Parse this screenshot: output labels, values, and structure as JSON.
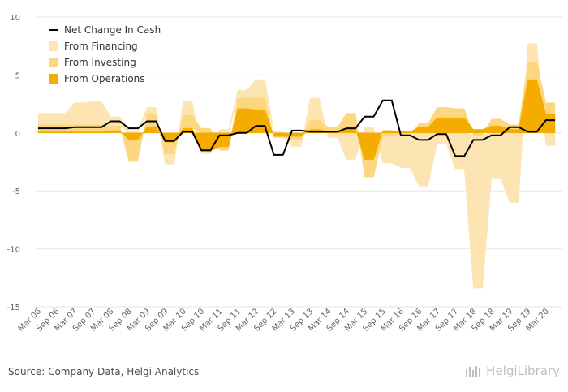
{
  "chart_data": {
    "type": "area",
    "x": [
      "Mar 06",
      "Jun 06",
      "Sep 06",
      "Dec 06",
      "Mar 07",
      "Jun 07",
      "Sep 07",
      "Dec 07",
      "Mar 08",
      "Jun 08",
      "Sep 08",
      "Dec 08",
      "Mar 09",
      "Jun 09",
      "Sep 09",
      "Dec 09",
      "Mar 10",
      "Jun 10",
      "Sep 10",
      "Dec 10",
      "Mar 11",
      "Jun 11",
      "Sep 11",
      "Dec 11",
      "Mar 12",
      "Jun 12",
      "Sep 12",
      "Dec 12",
      "Mar 13",
      "Jun 13",
      "Sep 13",
      "Dec 13",
      "Mar 14",
      "Jun 14",
      "Sep 14",
      "Dec 14",
      "Mar 15",
      "Jun 15",
      "Sep 15",
      "Dec 15",
      "Mar 16",
      "Jun 16",
      "Sep 16",
      "Dec 16",
      "Mar 17",
      "Jun 17",
      "Sep 17",
      "Dec 17",
      "Mar 18",
      "Jun 18",
      "Sep 18",
      "Dec 18",
      "Mar 19",
      "Jun 19",
      "Sep 19",
      "Dec 19",
      "Mar 20",
      "Jun 20"
    ],
    "tick_labels": [
      "Mar 06",
      "Sep 06",
      "Mar 07",
      "Sep 07",
      "Mar 08",
      "Sep 08",
      "Mar 09",
      "Sep 09",
      "Mar 10",
      "Sep 10",
      "Mar 11",
      "Sep 11",
      "Mar 12",
      "Sep 12",
      "Mar 13",
      "Sep 13",
      "Mar 14",
      "Sep 14",
      "Mar 15",
      "Sep 15",
      "Mar 16",
      "Sep 16",
      "Mar 17",
      "Sep 17",
      "Mar 18",
      "Sep 18",
      "Mar 19",
      "Sep 19",
      "Mar 20"
    ],
    "ylim": [
      -15,
      10
    ],
    "yticks": [
      10,
      5,
      0,
      -5,
      -10,
      -15
    ],
    "grid": true,
    "legend_position": "top-left",
    "series": [
      {
        "name": "From Operations",
        "color": "#f4ac00",
        "values": [
          0.1,
          0.1,
          0.1,
          0.1,
          0.1,
          0.1,
          0.1,
          0.1,
          0.2,
          0.2,
          -0.6,
          -0.6,
          0.5,
          0.5,
          -0.8,
          -0.8,
          0.4,
          0.4,
          -1.6,
          -1.6,
          -1.2,
          -1.2,
          2.1,
          2.1,
          2.0,
          2.0,
          -0.3,
          -0.3,
          -0.3,
          -0.3,
          0.3,
          0.3,
          0.1,
          0.1,
          0.4,
          0.4,
          -2.3,
          -2.3,
          0.2,
          0.2,
          0.1,
          0.1,
          0.5,
          0.5,
          1.3,
          1.3,
          1.3,
          1.3,
          0.3,
          0.3,
          0.6,
          0.6,
          0.3,
          0.3,
          4.6,
          4.6,
          1.6,
          1.6
        ]
      },
      {
        "name": "From Investing",
        "color": "#fcd77f",
        "values": [
          0.6,
          0.6,
          0.6,
          0.6,
          0.6,
          0.6,
          0.6,
          0.6,
          0.4,
          0.4,
          -1.8,
          -1.8,
          1.1,
          1.1,
          -1.0,
          -1.0,
          1.1,
          1.1,
          0.4,
          0.4,
          -0.3,
          -0.3,
          0.9,
          0.9,
          1.0,
          1.0,
          -0.1,
          -0.1,
          -0.3,
          -0.3,
          0.8,
          0.8,
          0.4,
          0.4,
          1.3,
          1.3,
          -1.5,
          -1.5,
          -0.2,
          -0.2,
          -0.1,
          -0.1,
          0.3,
          0.3,
          0.9,
          0.9,
          0.8,
          0.8,
          -0.2,
          -0.2,
          0.6,
          0.6,
          0.4,
          0.4,
          1.5,
          1.5,
          1.0,
          1.0
        ]
      },
      {
        "name": "From Financing",
        "color": "#fde5b3",
        "values": [
          1.0,
          1.0,
          1.0,
          1.0,
          1.9,
          1.9,
          2.0,
          2.0,
          0.8,
          0.8,
          0.2,
          0.2,
          0.6,
          0.6,
          -0.9,
          -0.9,
          1.2,
          1.2,
          -0.2,
          -0.2,
          0.3,
          0.3,
          0.7,
          0.7,
          1.6,
          1.6,
          0.1,
          0.1,
          -0.6,
          -0.6,
          1.9,
          1.9,
          -0.4,
          -0.4,
          -2.3,
          -2.3,
          0.5,
          0.5,
          -2.4,
          -2.4,
          -2.9,
          -2.9,
          -4.6,
          -4.6,
          -0.9,
          -0.9,
          -3.1,
          -3.1,
          -13.2,
          -13.2,
          -3.9,
          -3.9,
          -6.0,
          -6.0,
          1.6,
          1.6,
          -1.1,
          -1.1
        ]
      }
    ],
    "line": {
      "name": "Net Change In Cash",
      "color": "#000000",
      "values": [
        0.4,
        0.4,
        0.4,
        0.4,
        0.5,
        0.5,
        0.5,
        0.5,
        1.0,
        1.0,
        0.4,
        0.4,
        1.0,
        1.0,
        -0.7,
        -0.7,
        0.1,
        0.1,
        -1.5,
        -1.5,
        -0.2,
        -0.2,
        0.0,
        0.0,
        0.6,
        0.6,
        -1.9,
        -1.9,
        0.2,
        0.2,
        0.1,
        0.1,
        0.1,
        0.1,
        0.4,
        0.4,
        1.4,
        1.4,
        2.8,
        2.8,
        -0.2,
        -0.2,
        -0.6,
        -0.6,
        -0.1,
        -0.1,
        -2.0,
        -2.0,
        -0.6,
        -0.6,
        -0.2,
        -0.2,
        0.5,
        0.5,
        0.1,
        0.1,
        1.1,
        1.1
      ]
    }
  },
  "legend": {
    "items": [
      {
        "label": "Net Change In Cash",
        "kind": "line",
        "color": "#000000"
      },
      {
        "label": "From Financing",
        "kind": "area",
        "color": "#fde5b3"
      },
      {
        "label": "From Investing",
        "kind": "area",
        "color": "#fcd77f"
      },
      {
        "label": "From Operations",
        "kind": "area",
        "color": "#f4ac00"
      }
    ]
  },
  "footer": {
    "source": "Source: Company Data, Helgi Analytics",
    "brand": "HelgiLibrary"
  },
  "colors": {
    "grid": "#e6e6e6",
    "axis_text": "#666666",
    "brand_grey": "#bfbfbf"
  }
}
